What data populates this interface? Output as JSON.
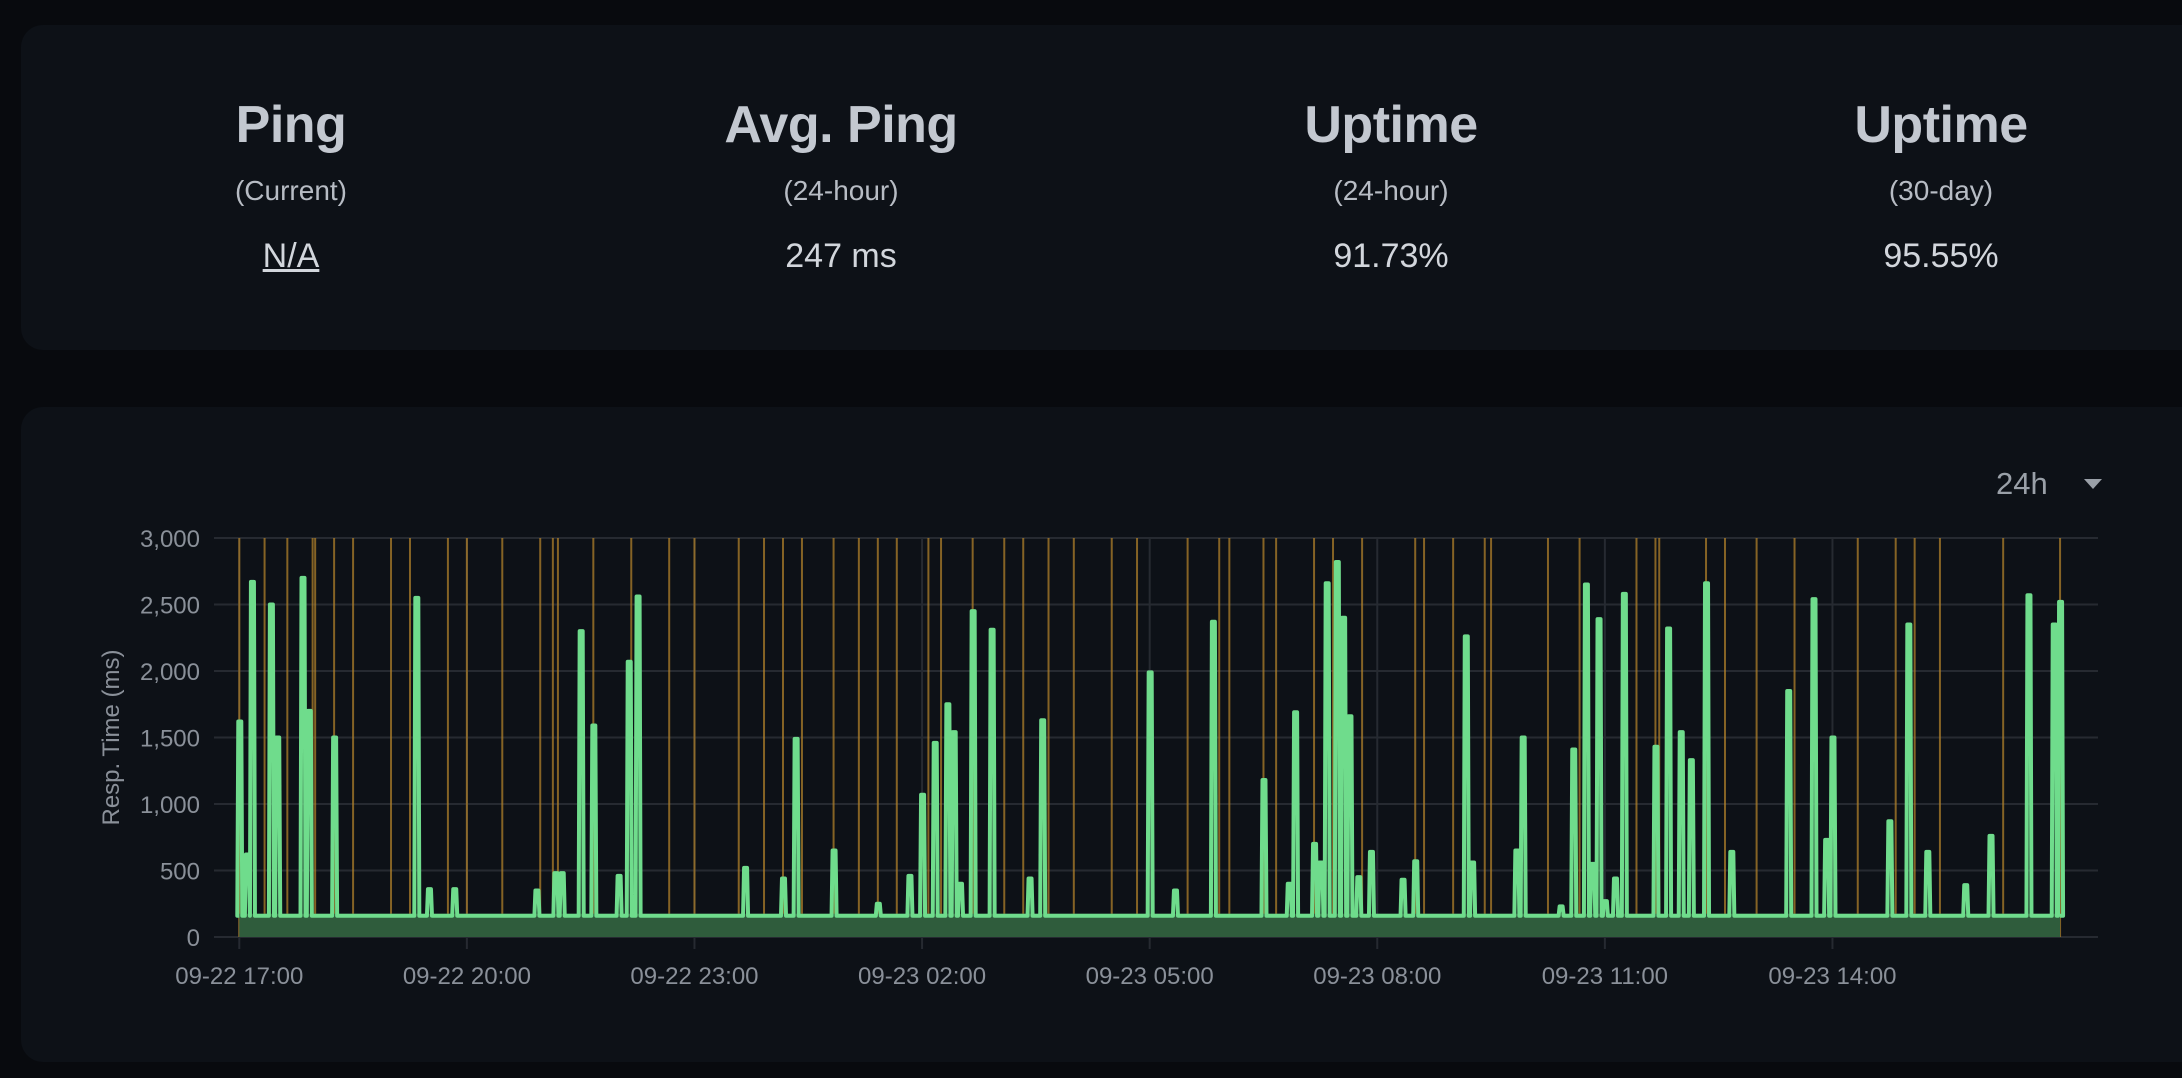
{
  "stats": [
    {
      "title": "Ping",
      "sub": "(Current)",
      "value": "N/A"
    },
    {
      "title": "Avg. Ping",
      "sub": "(24-hour)",
      "value": "247 ms"
    },
    {
      "title": "Uptime",
      "sub": "(24-hour)",
      "value": "91.73%"
    },
    {
      "title": "Uptime",
      "sub": "(30-day)",
      "value": "95.55%"
    }
  ],
  "range_selector": {
    "value": "24h"
  },
  "colors": {
    "line": "#6fdc8c",
    "down": "#b8862b",
    "grid": "#262a31",
    "baseline_fill": "#2f5c3c"
  },
  "chart_data": {
    "type": "line",
    "ylabel": "Resp. Time (ms)",
    "ylim": [
      0,
      3000
    ],
    "yticks": [
      0,
      500,
      1000,
      1500,
      2000,
      2500,
      3000
    ],
    "ytick_labels": [
      "0",
      "500",
      "1,000",
      "1,500",
      "2,000",
      "2,500",
      "3,000"
    ],
    "xlim": [
      "09-22 16:40",
      "09-23 17:30"
    ],
    "xticks": [
      "09-22 17:00",
      "09-22 20:00",
      "09-22 23:00",
      "09-23 02:00",
      "09-23 05:00",
      "09-23 08:00",
      "09-23 11:00",
      "09-23 14:00"
    ],
    "baseline_ms": 160,
    "series": [
      {
        "spikes": [
          [
            "09-22 17:00",
            1620
          ],
          [
            "09-22 17:06",
            620
          ],
          [
            "09-22 17:10",
            2670
          ],
          [
            "09-22 17:25",
            2500
          ],
          [
            "09-22 17:30",
            1500
          ],
          [
            "09-22 17:50",
            2700
          ],
          [
            "09-22 17:55",
            1700
          ],
          [
            "09-22 18:15",
            1500
          ],
          [
            "09-22 19:20",
            2550
          ],
          [
            "09-22 19:30",
            360
          ],
          [
            "09-22 19:50",
            360
          ],
          [
            "09-22 20:55",
            350
          ],
          [
            "09-22 21:10",
            480
          ],
          [
            "09-22 21:15",
            480
          ],
          [
            "09-22 21:30",
            2300
          ],
          [
            "09-22 21:40",
            1590
          ],
          [
            "09-22 22:00",
            460
          ],
          [
            "09-22 22:08",
            2070
          ],
          [
            "09-22 22:15",
            2560
          ],
          [
            "09-22 23:40",
            520
          ],
          [
            "09-23 00:10",
            440
          ],
          [
            "09-23 00:20",
            1490
          ],
          [
            "09-23 00:50",
            650
          ],
          [
            "09-23 01:25",
            250
          ],
          [
            "09-23 01:50",
            460
          ],
          [
            "09-23 02:00",
            1070
          ],
          [
            "09-23 02:10",
            1460
          ],
          [
            "09-23 02:20",
            1750
          ],
          [
            "09-23 02:25",
            1540
          ],
          [
            "09-23 02:30",
            400
          ],
          [
            "09-23 02:40",
            2450
          ],
          [
            "09-23 02:55",
            2310
          ],
          [
            "09-23 03:25",
            440
          ],
          [
            "09-23 03:35",
            1630
          ],
          [
            "09-23 05:00",
            1990
          ],
          [
            "09-23 05:20",
            350
          ],
          [
            "09-23 05:50",
            2370
          ],
          [
            "09-23 06:30",
            1180
          ],
          [
            "09-23 06:50",
            400
          ],
          [
            "09-23 06:55",
            1690
          ],
          [
            "09-23 07:10",
            700
          ],
          [
            "09-23 07:15",
            560
          ],
          [
            "09-23 07:20",
            2660
          ],
          [
            "09-23 07:28",
            2820
          ],
          [
            "09-23 07:33",
            2400
          ],
          [
            "09-23 07:38",
            1660
          ],
          [
            "09-23 07:45",
            450
          ],
          [
            "09-23 07:55",
            640
          ],
          [
            "09-23 08:20",
            430
          ],
          [
            "09-23 08:30",
            570
          ],
          [
            "09-23 09:10",
            2260
          ],
          [
            "09-23 09:15",
            560
          ],
          [
            "09-23 09:50",
            650
          ],
          [
            "09-23 09:55",
            1500
          ],
          [
            "09-23 10:25",
            230
          ],
          [
            "09-23 10:35",
            1410
          ],
          [
            "09-23 10:45",
            2650
          ],
          [
            "09-23 10:50",
            550
          ],
          [
            "09-23 10:55",
            2390
          ],
          [
            "09-23 11:00",
            270
          ],
          [
            "09-23 11:08",
            440
          ],
          [
            "09-23 11:15",
            2580
          ],
          [
            "09-23 11:40",
            1430
          ],
          [
            "09-23 11:50",
            2320
          ],
          [
            "09-23 12:00",
            1540
          ],
          [
            "09-23 12:08",
            1330
          ],
          [
            "09-23 12:20",
            2660
          ],
          [
            "09-23 12:40",
            640
          ],
          [
            "09-23 13:25",
            1850
          ],
          [
            "09-23 13:45",
            2540
          ],
          [
            "09-23 13:55",
            730
          ],
          [
            "09-23 14:00",
            1500
          ],
          [
            "09-23 14:45",
            870
          ],
          [
            "09-23 15:00",
            2350
          ],
          [
            "09-23 15:15",
            640
          ],
          [
            "09-23 15:45",
            390
          ],
          [
            "09-23 16:05",
            760
          ],
          [
            "09-23 16:35",
            2570
          ],
          [
            "09-23 16:55",
            2350
          ],
          [
            "09-23 17:00",
            2520
          ]
        ]
      }
    ],
    "down_markers": [
      "09-22 17:00",
      "09-22 17:20",
      "09-22 17:38",
      "09-22 17:58",
      "09-22 18:00",
      "09-22 18:15",
      "09-22 18:30",
      "09-22 19:00",
      "09-22 19:15",
      "09-22 19:45",
      "09-22 20:00",
      "09-22 20:28",
      "09-22 20:58",
      "09-22 21:08",
      "09-22 21:12",
      "09-22 21:40",
      "09-22 22:10",
      "09-22 22:40",
      "09-22 23:00",
      "09-22 23:35",
      "09-22 23:55",
      "09-23 00:10",
      "09-23 00:25",
      "09-23 00:50",
      "09-23 01:10",
      "09-23 01:25",
      "09-23 01:40",
      "09-23 02:05",
      "09-23 02:15",
      "09-23 02:40",
      "09-23 03:05",
      "09-23 03:20",
      "09-23 03:40",
      "09-23 04:00",
      "09-23 04:30",
      "09-23 04:50",
      "09-23 05:30",
      "09-23 05:55",
      "09-23 06:03",
      "09-23 06:30",
      "09-23 06:40",
      "09-23 07:10",
      "09-23 07:25",
      "09-23 07:48",
      "09-23 08:30",
      "09-23 08:37",
      "09-23 09:00",
      "09-23 09:25",
      "09-23 09:30",
      "09-23 10:15",
      "09-23 10:40",
      "09-23 11:25",
      "09-23 11:40",
      "09-23 11:43",
      "09-23 12:20",
      "09-23 12:35",
      "09-23 13:00",
      "09-23 13:30",
      "09-23 14:20",
      "09-23 14:50",
      "09-23 15:05",
      "09-23 15:25",
      "09-23 16:15",
      "09-23 17:00"
    ]
  }
}
